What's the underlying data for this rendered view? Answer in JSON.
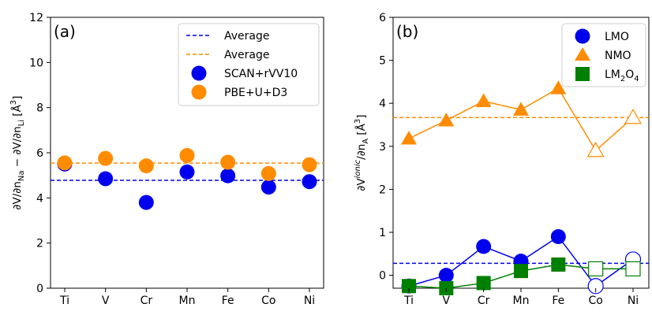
{
  "colors": {
    "blue": "#0000ee",
    "orange": "#ff8c00",
    "green": "#008000",
    "axis": "#000000"
  },
  "chart_data": [
    {
      "type": "scatter",
      "panel_label": "(a)",
      "ylabel": "∂V/∂n_Na − ∂V/∂n_Li [Å³]",
      "ylabel_parts": {
        "a": "∂V/∂n",
        "b": "Na",
        "c": " − ∂V/∂n",
        "d": "Li",
        "e": " [Å",
        "f": "3",
        "g": "]"
      },
      "categories": [
        "Ti",
        "V",
        "Cr",
        "Mn",
        "Fe",
        "Co",
        "Ni"
      ],
      "ylim": [
        0,
        12
      ],
      "yticks": [
        0,
        2,
        4,
        6,
        8,
        10,
        12
      ],
      "grid": false,
      "legend_position": "top-right",
      "series": [
        {
          "name": "SCAN+rVV10",
          "color": "#0000ee",
          "marker": "circle",
          "values": [
            5.5,
            4.85,
            3.8,
            5.15,
            4.98,
            4.48,
            4.72
          ]
        },
        {
          "name": "PBE+U+D3",
          "color": "#ff8c00",
          "marker": "circle",
          "values": [
            5.55,
            5.75,
            5.42,
            5.88,
            5.58,
            5.08,
            5.47
          ]
        }
      ],
      "reference_lines": [
        {
          "name": "Average",
          "color": "#0000ee",
          "value": 4.78,
          "style": "dashed"
        },
        {
          "name": "Average",
          "color": "#ff8c00",
          "value": 5.54,
          "style": "dashed"
        }
      ],
      "legend": [
        {
          "label": "Average",
          "type": "dashed-line",
          "color": "#0000ee"
        },
        {
          "label": "Average",
          "type": "dashed-line",
          "color": "#ff8c00"
        },
        {
          "label": "SCAN+rVV10",
          "type": "circle",
          "color": "#0000ee"
        },
        {
          "label": "PBE+U+D3",
          "type": "circle",
          "color": "#ff8c00"
        }
      ]
    },
    {
      "type": "line",
      "panel_label": "(b)",
      "ylabel": "∂V^ionic/∂n_A [Å³]",
      "ylabel_parts": {
        "a": "∂V",
        "b": "ionic",
        "c": "/∂n",
        "d": "A",
        "e": " [Å",
        "f": "3",
        "g": "]"
      },
      "categories": [
        "Ti",
        "V",
        "Cr",
        "Mn",
        "Fe",
        "Co",
        "Ni"
      ],
      "ylim": [
        -0.3,
        6
      ],
      "yticks": [
        0,
        1,
        2,
        3,
        4,
        5,
        6
      ],
      "grid": false,
      "legend_position": "top-right",
      "series": [
        {
          "name": "LMO",
          "color": "#0000ee",
          "marker": "circle",
          "values": [
            -0.25,
            0.0,
            0.67,
            0.33,
            0.9,
            -0.25,
            0.37
          ],
          "hollow": [
            false,
            false,
            false,
            false,
            false,
            true,
            true
          ]
        },
        {
          "name": "NMO",
          "color": "#ff8c00",
          "marker": "triangle",
          "values": [
            3.18,
            3.6,
            4.05,
            3.85,
            4.35,
            2.9,
            3.67
          ],
          "hollow": [
            false,
            false,
            false,
            false,
            false,
            true,
            true
          ]
        },
        {
          "name": "LM2O4",
          "color": "#008000",
          "marker": "square",
          "values": [
            -0.25,
            -0.3,
            -0.18,
            0.1,
            0.25,
            0.15,
            0.15
          ],
          "hollow": [
            false,
            false,
            false,
            false,
            false,
            true,
            true
          ]
        }
      ],
      "reference_lines": [
        {
          "color": "#0000ee",
          "value": 0.28,
          "style": "dashed"
        },
        {
          "color": "#ff8c00",
          "value": 3.67,
          "style": "dashed"
        }
      ],
      "legend": [
        {
          "label": "LMO",
          "type": "circle",
          "color": "#0000ee"
        },
        {
          "label": "NMO",
          "type": "triangle",
          "color": "#ff8c00"
        },
        {
          "label_main": "LM",
          "label_sub1": "2",
          "label_mid": "O",
          "label_sub2": "4",
          "type": "square",
          "color": "#008000"
        }
      ]
    }
  ]
}
